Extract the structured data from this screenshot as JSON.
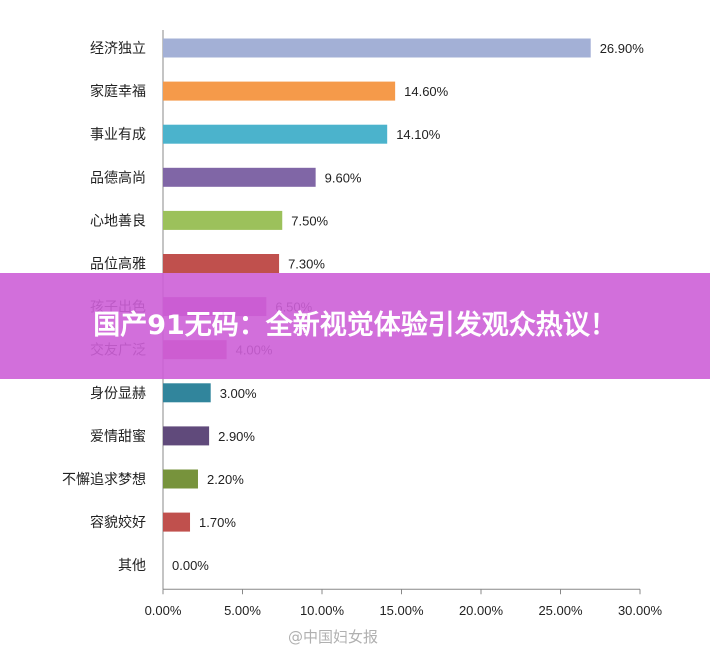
{
  "banner": {
    "text": "国产91无码：全新视觉体验引发观众热议！"
  },
  "watermark": {
    "text": "@中国妇女报"
  },
  "chart_data": {
    "type": "bar",
    "orientation": "horizontal",
    "categories": [
      "经济独立",
      "家庭幸福",
      "事业有成",
      "品德高尚",
      "心地善良",
      "品位高雅",
      "孩子出色",
      "交友广泛",
      "身份显赫",
      "爱情甜蜜",
      "不懈追求梦想",
      "容貌姣好",
      "其他"
    ],
    "values": [
      26.9,
      14.6,
      14.1,
      9.6,
      7.5,
      7.3,
      6.5,
      4.0,
      3.0,
      2.9,
      2.2,
      1.7,
      0.0
    ],
    "value_labels": [
      "26.90%",
      "14.60%",
      "14.10%",
      "9.60%",
      "7.50%",
      "7.30%",
      "6.50%",
      "4.00%",
      "3.00%",
      "2.90%",
      "2.20%",
      "1.70%",
      "0.00%"
    ],
    "colors": [
      "#a3b0d6",
      "#f59a4a",
      "#4bb3cc",
      "#8066a6",
      "#9cc15b",
      "#c0504d",
      "#b54aa8",
      "#cc4c99",
      "#31859c",
      "#604a7b",
      "#77933c",
      "#c0504d",
      "#4f81bd"
    ],
    "xlim": [
      0,
      30
    ],
    "xticks": [
      "0.00%",
      "5.00%",
      "10.00%",
      "15.00%",
      "20.00%",
      "25.00%",
      "30.00%"
    ],
    "grid": false,
    "title": "",
    "xlabel": "",
    "ylabel": ""
  }
}
